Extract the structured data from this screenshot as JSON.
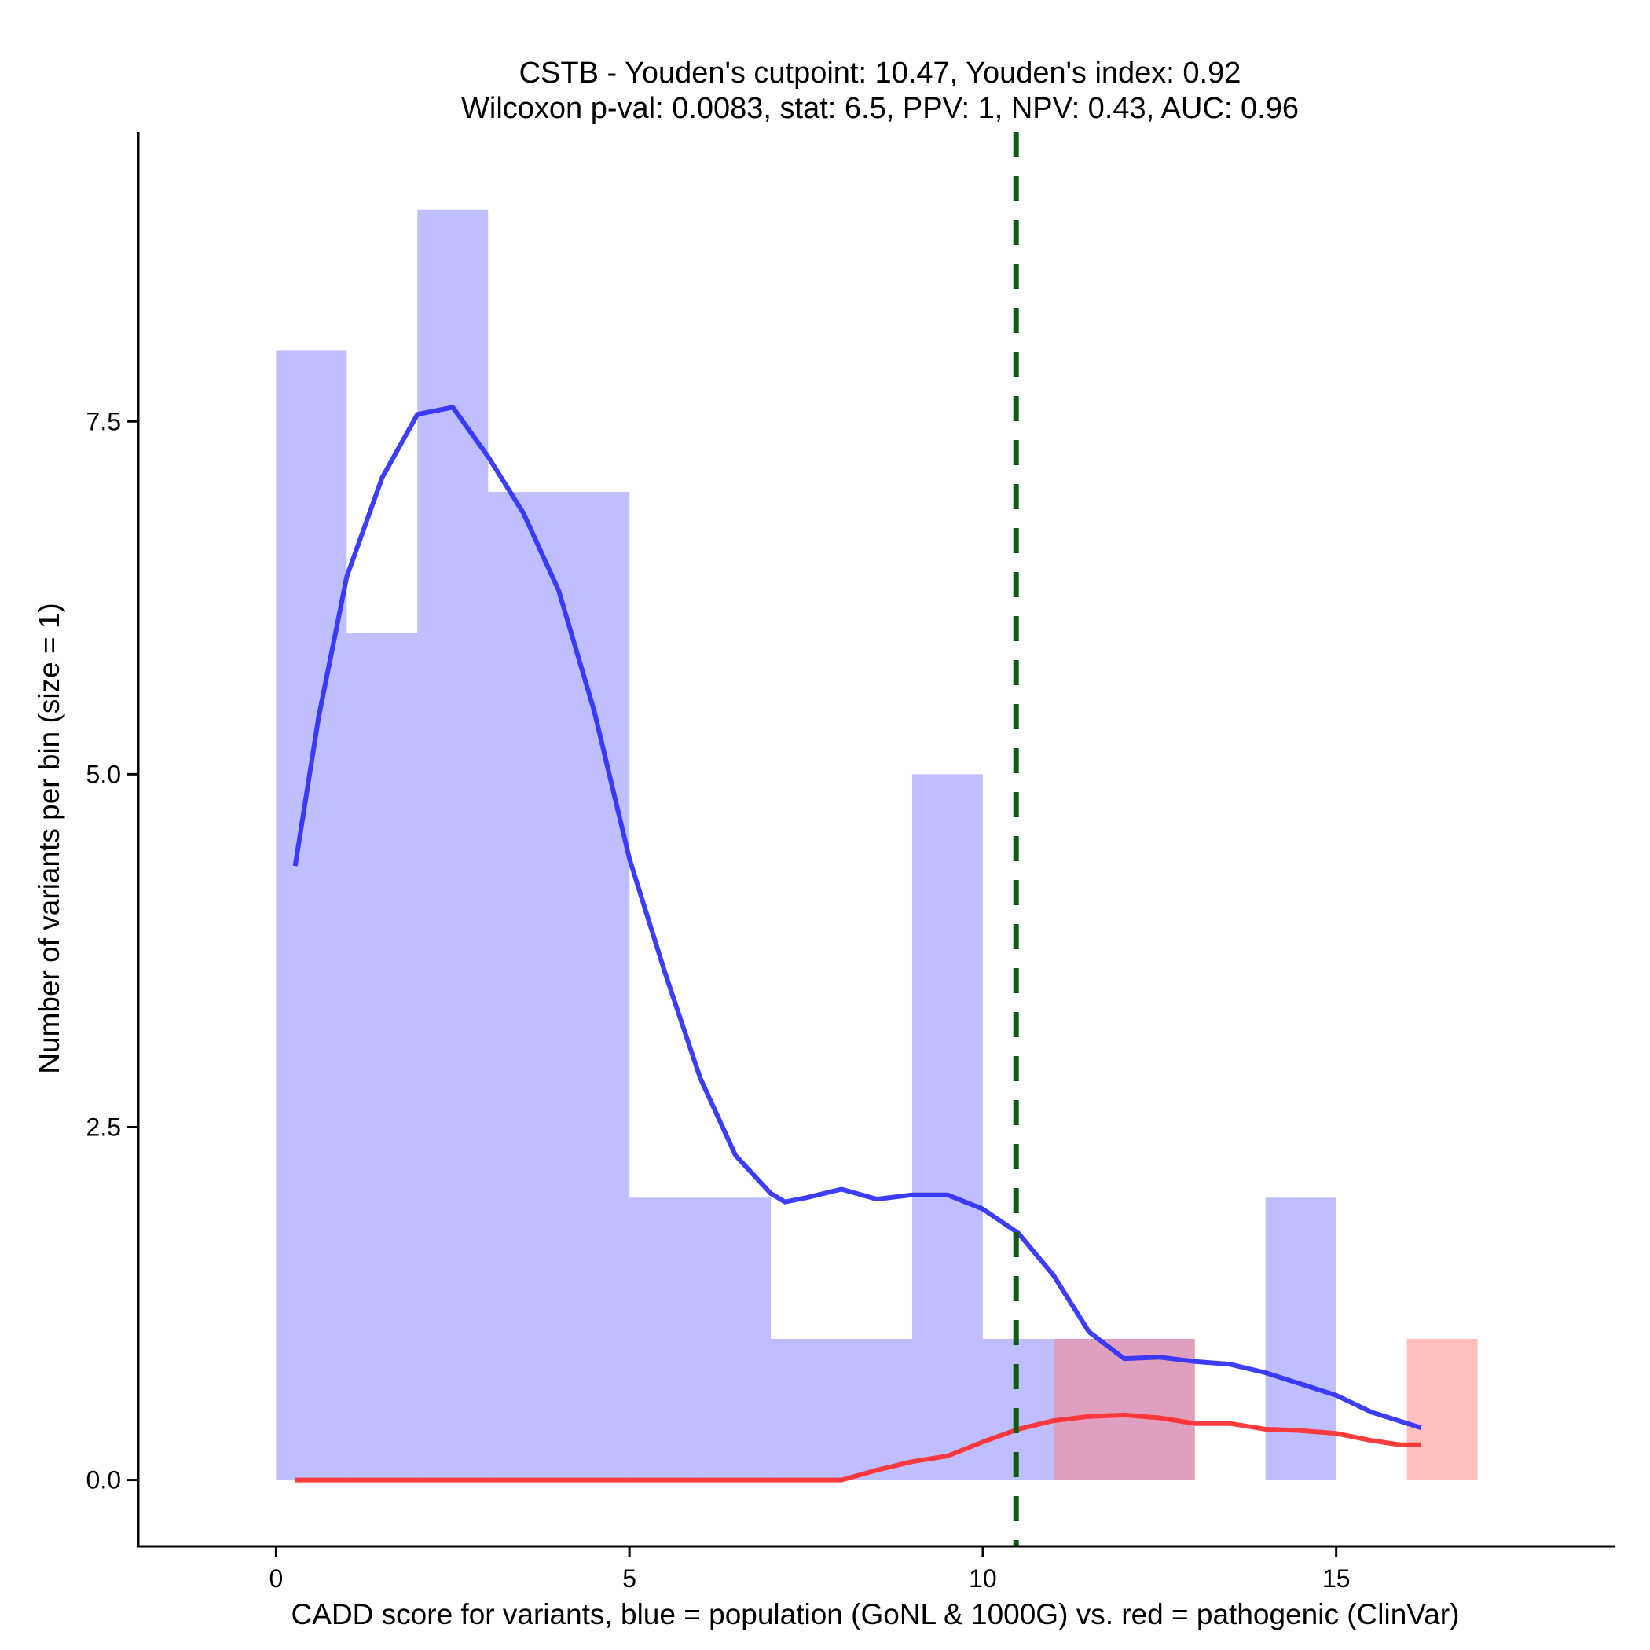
{
  "chart_data": {
    "type": "histogram",
    "title": "CSTB - Youden's cutpoint: 10.47, Youden's index: 0.92",
    "subtitle": "Wilcoxon p-val: 0.0083, stat: 6.5, PPV: 1, NPV: 0.43, AUC: 0.96",
    "xlabel": "CADD score for variants, blue = population (GoNL & 1000G) vs. red = pathogenic (ClinVar)",
    "ylabel": "Number of variants per bin (size = 1)",
    "xlim": [
      -1.95,
      18.95
    ],
    "ylim": [
      -0.47,
      9.55
    ],
    "x_ticks": [
      {
        "value": 0,
        "label": "0"
      },
      {
        "value": 5,
        "label": "5"
      },
      {
        "value": 10,
        "label": "10"
      },
      {
        "value": 15,
        "label": "15"
      }
    ],
    "y_ticks": [
      {
        "value": 0,
        "label": "0.0"
      },
      {
        "value": 2.5,
        "label": "2.5"
      },
      {
        "value": 5,
        "label": "5.0"
      },
      {
        "value": 7.5,
        "label": "7.5"
      }
    ],
    "bin_width": 1,
    "series": [
      {
        "name": "population",
        "color": "#8080ff",
        "bins": [
          {
            "start": 0,
            "count": 8
          },
          {
            "start": 1,
            "count": 6
          },
          {
            "start": 2,
            "count": 9
          },
          {
            "start": 3,
            "count": 7
          },
          {
            "start": 4,
            "count": 7
          },
          {
            "start": 5,
            "count": 2
          },
          {
            "start": 6,
            "count": 2
          },
          {
            "start": 7,
            "count": 1
          },
          {
            "start": 8,
            "count": 1
          },
          {
            "start": 9,
            "count": 5
          },
          {
            "start": 10,
            "count": 1
          },
          {
            "start": 11,
            "count": 1
          },
          {
            "start": 12,
            "count": 1
          },
          {
            "start": 14,
            "count": 2
          }
        ]
      },
      {
        "name": "pathogenic",
        "color": "#ff8080",
        "bins": [
          {
            "start": 11,
            "count": 1
          },
          {
            "start": 12,
            "count": 1
          },
          {
            "start": 16,
            "count": 1
          }
        ]
      }
    ],
    "density_lines": [
      {
        "name": "population density",
        "color": "#3333ff",
        "points": [
          [
            0.27,
            4.35
          ],
          [
            0.6,
            5.4
          ],
          [
            1,
            6.4
          ],
          [
            1.5,
            7.1
          ],
          [
            2,
            7.55
          ],
          [
            2.5,
            7.6
          ],
          [
            3,
            7.25
          ],
          [
            3.5,
            6.85
          ],
          [
            4,
            6.3
          ],
          [
            4.5,
            5.45
          ],
          [
            5,
            4.4
          ],
          [
            5.5,
            3.6
          ],
          [
            6,
            2.85
          ],
          [
            6.5,
            2.3
          ],
          [
            7,
            2.03
          ],
          [
            7.2,
            1.97
          ],
          [
            7.5,
            2.0
          ],
          [
            8,
            2.06
          ],
          [
            8.5,
            1.99
          ],
          [
            9,
            2.02
          ],
          [
            9.5,
            2.02
          ],
          [
            10,
            1.92
          ],
          [
            10.5,
            1.75
          ],
          [
            11,
            1.45
          ],
          [
            11.5,
            1.05
          ],
          [
            12,
            0.86
          ],
          [
            12.5,
            0.87
          ],
          [
            13,
            0.84
          ],
          [
            13.5,
            0.82
          ],
          [
            14,
            0.76
          ],
          [
            14.5,
            0.68
          ],
          [
            15,
            0.6
          ],
          [
            15.5,
            0.48
          ],
          [
            16.2,
            0.37
          ]
        ]
      },
      {
        "name": "pathogenic density",
        "color": "#ff3333",
        "points": [
          [
            0.27,
            0
          ],
          [
            1,
            0
          ],
          [
            2,
            0
          ],
          [
            3,
            0
          ],
          [
            4,
            0
          ],
          [
            5,
            0
          ],
          [
            6,
            0
          ],
          [
            7,
            0
          ],
          [
            8,
            0
          ],
          [
            8.5,
            0.07
          ],
          [
            9,
            0.13
          ],
          [
            9.5,
            0.17
          ],
          [
            10,
            0.27
          ],
          [
            10.5,
            0.36
          ],
          [
            11,
            0.42
          ],
          [
            11.5,
            0.45
          ],
          [
            12,
            0.46
          ],
          [
            12.5,
            0.44
          ],
          [
            13,
            0.4
          ],
          [
            13.5,
            0.4
          ],
          [
            14,
            0.36
          ],
          [
            14.5,
            0.35
          ],
          [
            15,
            0.33
          ],
          [
            15.5,
            0.28
          ],
          [
            15.9,
            0.25
          ],
          [
            16.2,
            0.25
          ]
        ]
      }
    ],
    "annotations": [
      {
        "type": "vline",
        "x": 10.47,
        "style": "dashed",
        "color": "#0f5b0f",
        "label": "Youden's cutpoint"
      }
    ]
  }
}
